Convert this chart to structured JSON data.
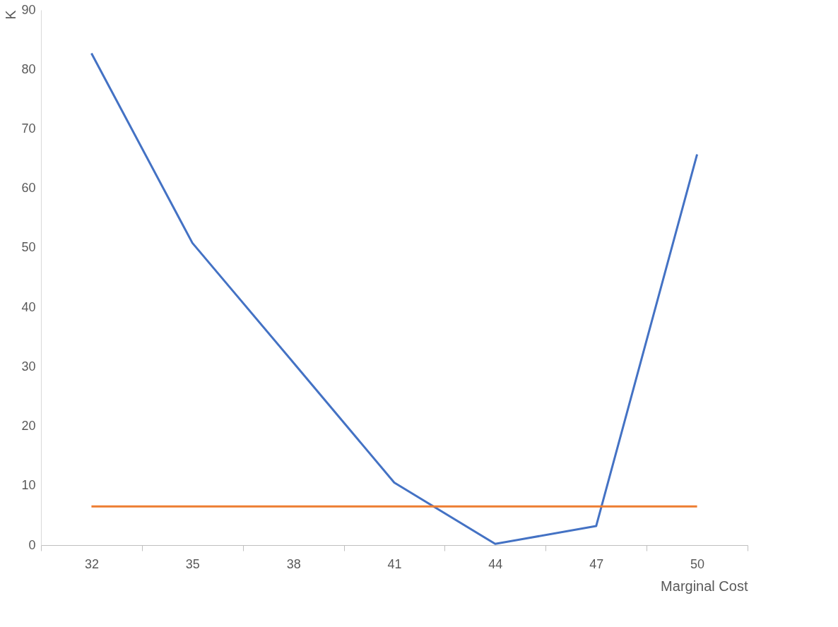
{
  "chart_data": {
    "type": "line",
    "xlabel": "Marginal Cost",
    "ylabel": "K",
    "categories": [
      "32",
      "35",
      "38",
      "41",
      "44",
      "47",
      "50"
    ],
    "series": [
      {
        "color": "#4472c4",
        "values": [
          82.7,
          50.8,
          30.7,
          10.5,
          0.2,
          3.2,
          65.7
        ]
      },
      {
        "color": "#ed7d31",
        "values": [
          6.5,
          6.5,
          6.5,
          6.5,
          6.5,
          6.5,
          6.5
        ]
      }
    ],
    "ylim": [
      0,
      90
    ],
    "yticks": [
      0,
      10,
      20,
      30,
      40,
      50,
      60,
      70,
      80,
      90
    ],
    "grid": false,
    "legend": false,
    "marker": "none",
    "line_style": "solid"
  }
}
